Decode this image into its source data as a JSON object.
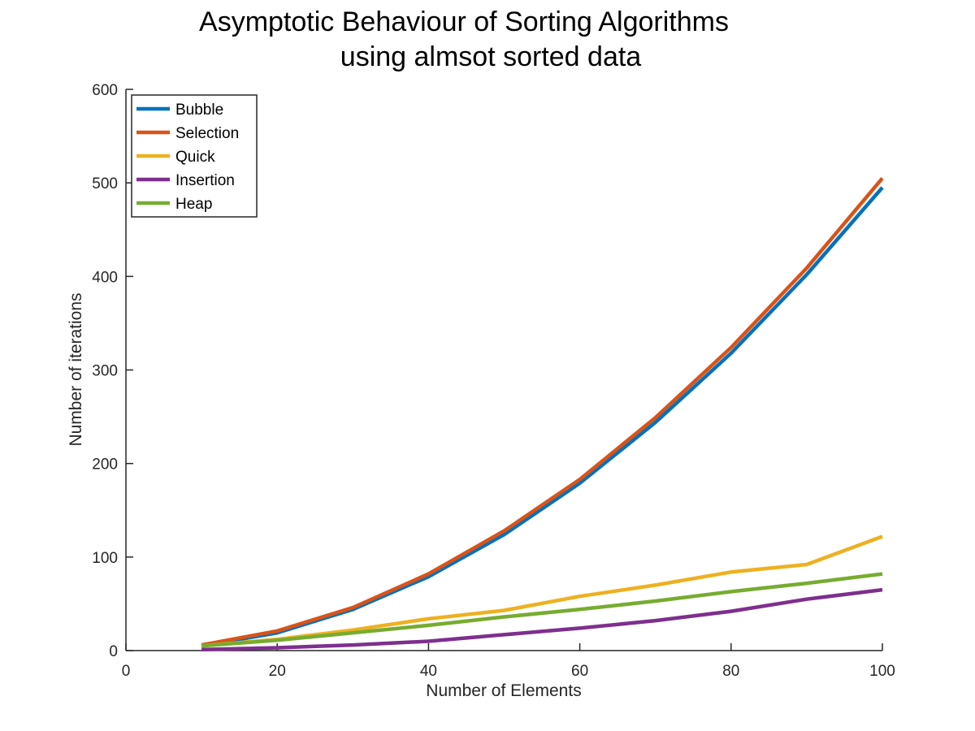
{
  "chart_data": {
    "type": "line",
    "title": [
      "Asymptotic Behaviour of Sorting Algorithms",
      "using almsot sorted data"
    ],
    "xlabel": "Number of Elements",
    "ylabel": "Number of iterations",
    "xlim": [
      0,
      100
    ],
    "ylim": [
      0,
      600
    ],
    "xticks": [
      0,
      20,
      40,
      60,
      80,
      100
    ],
    "yticks": [
      0,
      100,
      200,
      300,
      400,
      500,
      600
    ],
    "grid": false,
    "legend_position": "top-left",
    "x": [
      10,
      20,
      30,
      40,
      50,
      60,
      70,
      80,
      90,
      100
    ],
    "series": [
      {
        "name": "Bubble",
        "color": "#0072BD",
        "values": [
          5,
          19,
          44,
          79,
          124,
          179,
          244,
          318,
          402,
          495
        ]
      },
      {
        "name": "Selection",
        "color": "#D95319",
        "values": [
          6,
          21,
          46,
          82,
          128,
          183,
          249,
          324,
          409,
          505
        ]
      },
      {
        "name": "Quick",
        "color": "#EDB120",
        "values": [
          5,
          12,
          22,
          34,
          43,
          58,
          70,
          84,
          92,
          122
        ]
      },
      {
        "name": "Insertion",
        "color": "#7E2F8E",
        "values": [
          1,
          3,
          6,
          10,
          17,
          24,
          32,
          42,
          55,
          65
        ]
      },
      {
        "name": "Heap",
        "color": "#77AC30",
        "values": [
          5,
          11,
          19,
          27,
          36,
          44,
          53,
          63,
          72,
          82
        ]
      }
    ]
  }
}
